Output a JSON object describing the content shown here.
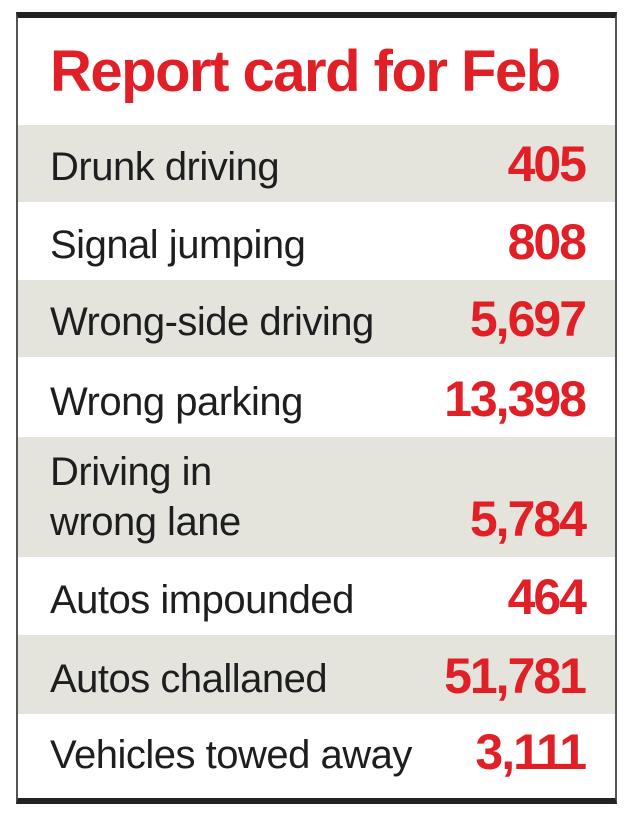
{
  "header": {
    "title": "Report card for Feb"
  },
  "table": {
    "rows": [
      [
        "Drunk driving",
        "405"
      ],
      [
        "Signal jumping",
        "808"
      ],
      [
        "Wrong-side driving",
        "5,697"
      ],
      [
        "Wrong parking",
        "13,398"
      ],
      [
        "Driving in\nwrong lane",
        "5,784"
      ],
      [
        "Autos impounded",
        "464"
      ],
      [
        "Autos challaned",
        "51,781"
      ],
      [
        "Vehicles towed away",
        "3,111"
      ]
    ]
  }
}
